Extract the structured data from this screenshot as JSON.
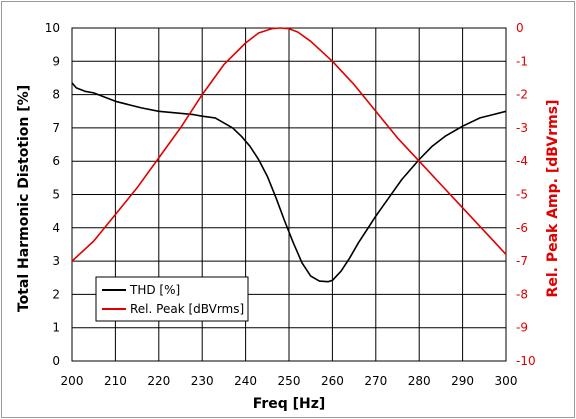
{
  "chart_data": {
    "type": "line",
    "xlabel": "Freq [Hz]",
    "ylabel_left": "Total Harmonic Distotion [%]",
    "ylabel_right": "Rel. Peak Amp. [dBVrms]",
    "xlim": [
      200,
      300
    ],
    "ylim_left": [
      0,
      10
    ],
    "ylim_right": [
      -10,
      0
    ],
    "x_ticks": [
      "200",
      "210",
      "220",
      "230",
      "240",
      "250",
      "260",
      "270",
      "280",
      "290",
      "300"
    ],
    "y_left_ticks": [
      "0",
      "1",
      "2",
      "3",
      "4",
      "5",
      "6",
      "7",
      "8",
      "9",
      "10"
    ],
    "y_right_ticks": [
      "-10",
      "-9",
      "-8",
      "-7",
      "-6",
      "-5",
      "-4",
      "-3",
      "-2",
      "-1",
      "0"
    ],
    "grid": true,
    "legend_position": "lower-left",
    "series": [
      {
        "name": "THD [%]",
        "color": "#000000",
        "axis": "left",
        "x": [
          200,
          201,
          203,
          205,
          207,
          210,
          213,
          216,
          220,
          224,
          228,
          230,
          233,
          235,
          237,
          239,
          241,
          243,
          245,
          247,
          249,
          251,
          253,
          255,
          257,
          259,
          260,
          262,
          264,
          266,
          268,
          270,
          273,
          276,
          280,
          283,
          286,
          290,
          294,
          297,
          300
        ],
        "y": [
          8.35,
          8.2,
          8.1,
          8.05,
          7.95,
          7.8,
          7.7,
          7.6,
          7.5,
          7.45,
          7.4,
          7.35,
          7.3,
          7.15,
          7.0,
          6.75,
          6.45,
          6.05,
          5.55,
          4.9,
          4.2,
          3.55,
          2.95,
          2.55,
          2.4,
          2.38,
          2.42,
          2.7,
          3.1,
          3.55,
          3.95,
          4.35,
          4.9,
          5.45,
          6.05,
          6.45,
          6.75,
          7.05,
          7.3,
          7.4,
          7.5
        ]
      },
      {
        "name": "Rel. Peak [dBVrms]",
        "color": "#e00000",
        "axis": "right",
        "x": [
          200,
          205,
          210,
          215,
          220,
          225,
          230,
          235,
          240,
          243,
          246,
          248,
          250,
          252,
          255,
          260,
          265,
          270,
          275,
          280,
          285,
          290,
          295,
          300
        ],
        "y": [
          -7.0,
          -6.4,
          -5.6,
          -4.8,
          -3.9,
          -3.0,
          -2.0,
          -1.1,
          -0.45,
          -0.15,
          -0.02,
          0.0,
          -0.02,
          -0.12,
          -0.4,
          -1.0,
          -1.7,
          -2.5,
          -3.3,
          -4.0,
          -4.7,
          -5.4,
          -6.1,
          -6.8
        ]
      }
    ]
  }
}
